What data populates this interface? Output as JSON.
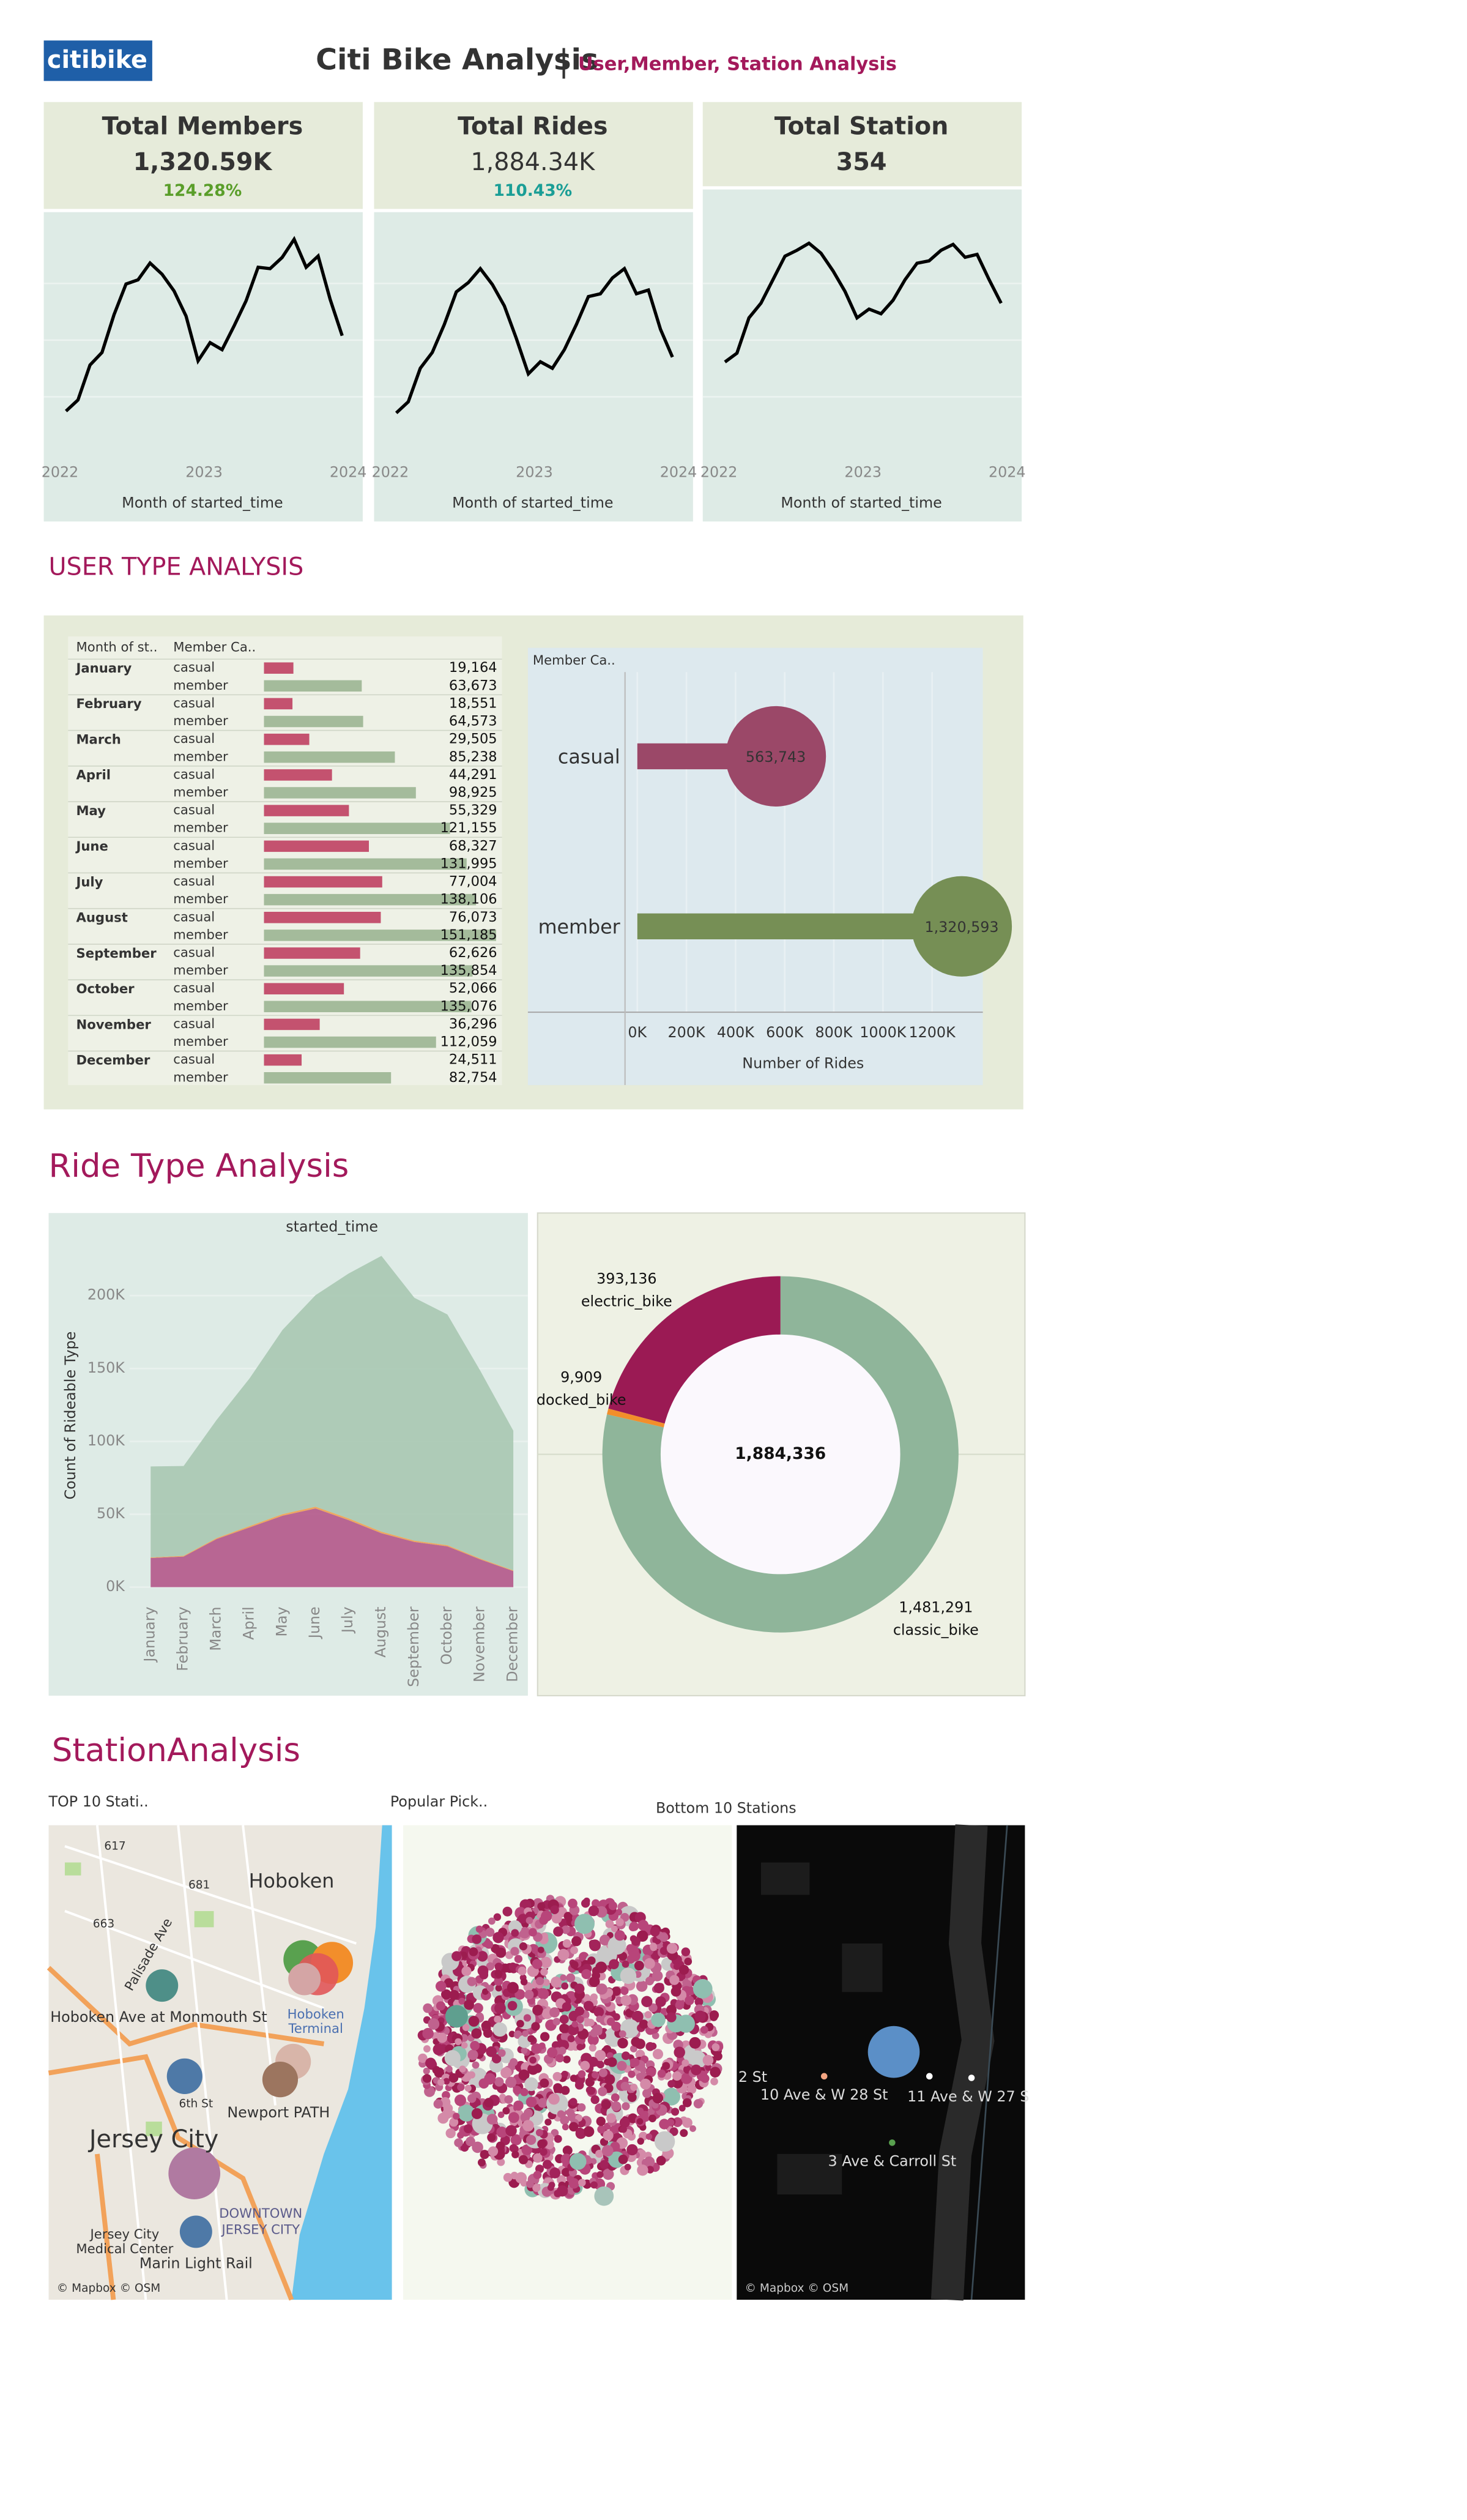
{
  "header": {
    "logo": "citibike",
    "title": "Citi Bike Analysis",
    "separator": "|",
    "subtitle": "User,Member, Station Analysis"
  },
  "sections": {
    "user_type": "USER TYPE ANALYSIS",
    "ride_type": "Ride Type Analysis",
    "station": "StationAnalysis"
  },
  "chart_data": [
    {
      "type": "line",
      "title": "Total Members",
      "kpi": "1,320.59K",
      "change": "124.28%",
      "change_color": "#5a9e2a",
      "color": "#000000",
      "x_label": "Month of started_time",
      "xlim": [
        0,
        24
      ],
      "xticks": [
        {
          "value": 0,
          "label": "2022"
        },
        {
          "value": 12,
          "label": "2023"
        },
        {
          "value": 24,
          "label": "2024"
        }
      ],
      "ylim": [
        0,
        160000
      ],
      "values": [
        28000,
        36000,
        61000,
        70000,
        97000,
        119000,
        122000,
        134000,
        126000,
        114000,
        96000,
        64000,
        77000,
        72000,
        89000,
        107000,
        131000,
        130000,
        138000,
        151000,
        131000,
        139000,
        108000,
        82000
      ]
    },
    {
      "type": "line",
      "title": "Total Rides",
      "kpi": "1,884.34K",
      "change": "110.43%",
      "change_color": "#1a9e96",
      "color": "#000000",
      "x_label": "Month of started_time",
      "xlim": [
        0,
        24
      ],
      "xticks": [
        {
          "value": 0,
          "label": "2022"
        },
        {
          "value": 12,
          "label": "2023"
        },
        {
          "value": 24,
          "label": "2024"
        }
      ],
      "ylim": [
        0,
        240000
      ],
      "values": [
        40000,
        52000,
        88000,
        105000,
        135000,
        170000,
        180000,
        195000,
        178000,
        155000,
        120000,
        82000,
        95000,
        88000,
        108000,
        135000,
        165000,
        168000,
        185000,
        195000,
        168000,
        172000,
        130000,
        100000
      ]
    },
    {
      "type": "line",
      "title": "Total  Station",
      "kpi": "354",
      "color": "#000000",
      "x_label": "Month of started_time",
      "xlim": [
        0,
        24
      ],
      "xticks": [
        {
          "value": 0,
          "label": "2022"
        },
        {
          "value": 12,
          "label": "2023"
        },
        {
          "value": 24,
          "label": "2024"
        }
      ],
      "ylim": [
        0,
        380
      ],
      "values": [
        150,
        165,
        225,
        250,
        290,
        330,
        340,
        352,
        335,
        305,
        270,
        225,
        240,
        232,
        255,
        290,
        318,
        322,
        340,
        350,
        328,
        333,
        290,
        250
      ]
    },
    {
      "type": "table-bar",
      "month_header": "Month of st..",
      "member_header": "Member Ca..",
      "categories": [
        "January",
        "February",
        "March",
        "April",
        "May",
        "June",
        "July",
        "August",
        "September",
        "October",
        "November",
        "December"
      ],
      "xlim": [
        0,
        155000
      ],
      "series": [
        {
          "name": "casual",
          "color": "#c4526f",
          "values": [
            19164,
            18551,
            29505,
            44291,
            55329,
            68327,
            77004,
            76073,
            62626,
            52066,
            36296,
            24511
          ],
          "value_labels": [
            "19,164",
            "18,551",
            "29,505",
            "44,291",
            "55,329",
            "68,327",
            "77,004",
            "76,073",
            "62,626",
            "52,066",
            "36,296",
            "24,511"
          ]
        },
        {
          "name": "member",
          "color": "#a4bb9b",
          "values": [
            63673,
            64573,
            85238,
            98925,
            121155,
            131995,
            138106,
            151185,
            135854,
            135076,
            112059,
            82754
          ],
          "value_labels": [
            "63,673",
            "64,573",
            "85,238",
            "98,925",
            "121,155",
            "131,995",
            "138,106",
            "151,185",
            "135,854",
            "135,076",
            "112,059",
            "82,754"
          ]
        }
      ]
    },
    {
      "type": "lollipop",
      "header": "Member Ca..",
      "categories": [
        "casual",
        "member"
      ],
      "values": [
        563743,
        1320593
      ],
      "value_labels": [
        "563,743",
        "1,320,593"
      ],
      "colors": [
        "#9b4868",
        "#768f55"
      ],
      "x_label": "Number of Rides",
      "xlim": [
        -50000,
        1400000
      ],
      "grid": true,
      "xticks": [
        {
          "value": 0,
          "label": "0K"
        },
        {
          "value": 200000,
          "label": "200K"
        },
        {
          "value": 400000,
          "label": "400K"
        },
        {
          "value": 600000,
          "label": "600K"
        },
        {
          "value": 800000,
          "label": "800K"
        },
        {
          "value": 1000000,
          "label": "1000K"
        },
        {
          "value": 1200000,
          "label": "1200K"
        }
      ]
    },
    {
      "type": "area",
      "title": "started_time",
      "y_label": "Count of Rideable Type",
      "stacked": true,
      "categories": [
        "January",
        "February",
        "March",
        "April",
        "May",
        "June",
        "July",
        "August",
        "September",
        "October",
        "November",
        "December"
      ],
      "ylim": [
        -10000,
        230000
      ],
      "yticks": [
        {
          "value": 0,
          "label": "0K"
        },
        {
          "value": 50000,
          "label": "50K"
        },
        {
          "value": 100000,
          "label": "100K"
        },
        {
          "value": 150000,
          "label": "150K"
        },
        {
          "value": 200000,
          "label": "200K"
        }
      ],
      "series": [
        {
          "color": "#b4588a",
          "values": [
            20000,
            21000,
            33000,
            41000,
            49000,
            54000,
            46000,
            37000,
            31000,
            28000,
            19000,
            11000
          ]
        },
        {
          "color": "#f0a050",
          "values": [
            400,
            500,
            700,
            900,
            1100,
            1200,
            1200,
            1100,
            900,
            800,
            600,
            500
          ]
        },
        {
          "color": "#a9c8b1",
          "values": [
            62400,
            61600,
            81000,
            101300,
            126400,
            145100,
            167900,
            189200,
            166600,
            158300,
            128800,
            95800
          ]
        }
      ]
    },
    {
      "type": "donut",
      "categories": [
        "classic_bike",
        "docked_bike",
        "electric_bike"
      ],
      "values": [
        1481291,
        9909,
        393136
      ],
      "value_labels": [
        "1,481,291",
        "9,909",
        "393,136"
      ],
      "colors": [
        "#8fb59a",
        "#f28e2b",
        "#9b1a54"
      ],
      "center_label": "1,884,336"
    }
  ],
  "maps": {
    "top": {
      "title": "TOP 10 Stati..",
      "labels": [
        "Hoboken",
        "Hoboken Ave at Monmouth St",
        "Newport PATH",
        "Jersey City",
        "Marin Light Rail",
        "DOWNTOWN",
        "JERSEY CITY",
        "Jersey City",
        "Medical Center",
        "Palisade Ave",
        "6th St",
        "617",
        "681",
        "663",
        "Hoboken",
        "Terminal"
      ]
    },
    "popular": {
      "title": "Popular Pick.."
    },
    "bottom": {
      "title": "Bottom 10 Stations",
      "labels": [
        "10 Ave & W 28 St",
        "11 Ave & W 27 S",
        "3 Ave & Carroll St",
        "2 St"
      ]
    },
    "attribution": "© Mapbox © OSM"
  }
}
